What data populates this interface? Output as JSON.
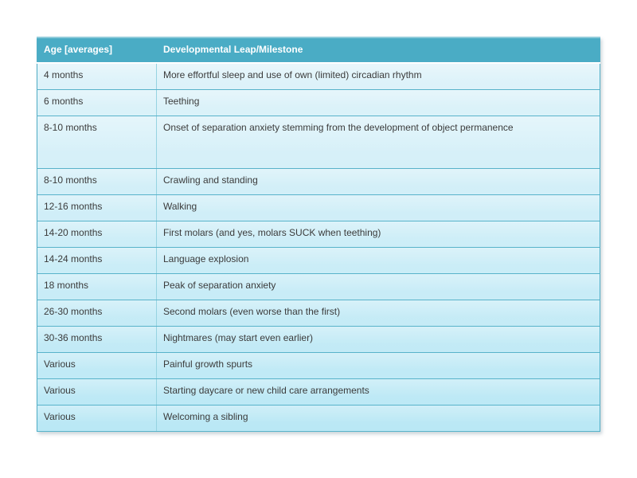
{
  "table": {
    "columns": [
      "Age [averages]",
      "Developmental Leap/Milestone"
    ],
    "colors": {
      "header_bg": "#4aacc5",
      "header_text": "#ffffff",
      "body_text": "#3b3b3b",
      "outer_border": "#4fadc6",
      "row_separator": "#58b3ca",
      "column_divider": "#96d3e1",
      "body_bg_top": "#e2f4fa",
      "body_bg_bottom": "#bae8f5"
    },
    "rows": [
      {
        "age": "4 months",
        "milestone": "More effortful sleep and use of own (limited) circadian rhythm"
      },
      {
        "age": "6 months",
        "milestone": "Teething"
      },
      {
        "age": "8-10 months",
        "milestone": "Onset of separation anxiety stemming from the development of object permanence",
        "tall": true
      },
      {
        "age": "8-10 months",
        "milestone": "Crawling and standing"
      },
      {
        "age": "12-16 months",
        "milestone": "Walking"
      },
      {
        "age": "14-20 months",
        "milestone": "First molars (and yes, molars SUCK when teething)"
      },
      {
        "age": "14-24 months",
        "milestone": "Language explosion"
      },
      {
        "age": "18 months",
        "milestone": "Peak of separation anxiety"
      },
      {
        "age": "26-30 months",
        "milestone": "Second molars (even worse than the first)"
      },
      {
        "age": "30-36 months",
        "milestone": "Nightmares (may start even earlier)"
      },
      {
        "age": "Various",
        "milestone": "Painful growth spurts"
      },
      {
        "age": "Various",
        "milestone": "Starting daycare or new child care arrangements"
      },
      {
        "age": "Various",
        "milestone": "Welcoming a sibling"
      }
    ]
  }
}
